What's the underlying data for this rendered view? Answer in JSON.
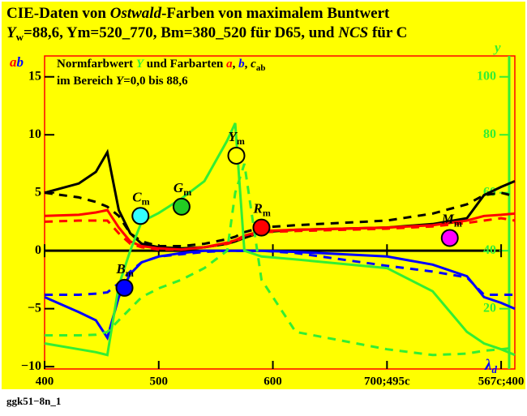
{
  "chart_data": {
    "type": "line",
    "title_line1": [
      "CIE-Daten von ",
      "Ostwald",
      "-Farben von maximalem Buntwert"
    ],
    "title_line2": [
      "Y",
      "w",
      "=88,6, Ym=520_770, Bm=380_520 für D65, und ",
      "NCS",
      " für C"
    ],
    "note_line1": [
      "Normfarbwert ",
      "Y",
      " und Farbarten ",
      "a",
      ", ",
      "b",
      ", ",
      "c",
      "ab"
    ],
    "note_line2": [
      "im Bereich ",
      "Y",
      "=0,0 bis 88,6"
    ],
    "y_label": [
      "a",
      "b"
    ],
    "y2_label": "y",
    "x_label": [
      "λ",
      "d"
    ],
    "footer": "ggk51−8n_1",
    "xlim": [
      400,
      812
    ],
    "xticks": [
      400,
      500,
      600,
      {
        "value": 700,
        "label": "700;495c"
      },
      {
        "value": 800,
        "label": "567c;400"
      }
    ],
    "ylim": [
      -10.2,
      16.8
    ],
    "yticks": [
      {
        "value": -10,
        "label": "−10"
      },
      {
        "value": -5,
        "label": "−5"
      },
      0,
      5,
      10,
      15
    ],
    "y2lim": [
      -0.8,
      107.2
    ],
    "y2ticks": [
      20,
      40,
      60,
      80,
      100
    ],
    "x": [
      400,
      430,
      445,
      455,
      465,
      475,
      485,
      500,
      520,
      540,
      560,
      567,
      575,
      590,
      620,
      700,
      740,
      770,
      785,
      800,
      812
    ],
    "series": [
      {
        "color": "#000000",
        "dashed": false,
        "values": [
          5,
          5.8,
          6.8,
          8.5,
          3.5,
          1.5,
          0.6,
          0.3,
          0.2,
          0.3,
          0.6,
          0.8,
          1.1,
          1.6,
          1.8,
          2,
          2.3,
          2.8,
          4.8,
          5.5,
          6
        ]
      },
      {
        "color": "#000000",
        "dashed": true,
        "values": [
          5,
          4.6,
          4.2,
          3.8,
          3,
          1.5,
          0.8,
          0.4,
          0.4,
          0.6,
          1,
          1.2,
          1.6,
          2,
          2.2,
          2.6,
          3.2,
          4,
          4.8,
          5,
          4.7
        ]
      },
      {
        "color": "#ff0000",
        "dashed": false,
        "values": [
          3,
          3.1,
          3.3,
          3.5,
          2,
          0.8,
          0.4,
          0.2,
          0.1,
          0.3,
          0.7,
          0.9,
          1.3,
          1.7,
          1.8,
          2,
          2.2,
          2.6,
          3,
          3.1,
          3.2
        ]
      },
      {
        "color": "#ff0000",
        "dashed": true,
        "values": [
          2.5,
          2.6,
          2.6,
          2.6,
          1.5,
          0.6,
          0.3,
          0.1,
          0.1,
          0.3,
          0.6,
          0.8,
          1.2,
          1.6,
          1.7,
          1.9,
          2.1,
          2.4,
          2.6,
          2.8,
          2.6
        ]
      },
      {
        "color": "#0000ff",
        "dashed": false,
        "values": [
          -4,
          -5.3,
          -6,
          -7.5,
          -4,
          -2,
          -1,
          -0.5,
          -0.2,
          0,
          0,
          0,
          0,
          0,
          -0.1,
          -0.5,
          -1.2,
          -2.2,
          -4,
          -4.5,
          -5
        ]
      },
      {
        "color": "#0000ff",
        "dashed": true,
        "values": [
          -3.8,
          -3.8,
          -3.7,
          -3.6,
          -2.8,
          -1.8,
          -1,
          -0.5,
          -0.3,
          -0.1,
          0,
          0,
          0,
          0,
          -0.2,
          -1.3,
          -1.8,
          -2.3,
          -3.8,
          -3.8,
          -3.8
        ]
      },
      {
        "color": "#33ee33",
        "dashed": false,
        "axis": "y2",
        "values": [
          8,
          6,
          5,
          4,
          28,
          40,
          50,
          53,
          58,
          64,
          78,
          84,
          40,
          38,
          37,
          34,
          26,
          12,
          8,
          6,
          4
        ]
      },
      {
        "color": "#33ee33",
        "dashed": true,
        "axis": "y2",
        "values": [
          10.8,
          10.8,
          11,
          12,
          16,
          20,
          24,
          27,
          30,
          34,
          40,
          60,
          70,
          30,
          12,
          6,
          4,
          4.5,
          5.5,
          6,
          6.5
        ]
      }
    ],
    "points": [
      {
        "label": "C",
        "sub": "m",
        "x": 484,
        "y": 3,
        "color": "#33ffff"
      },
      {
        "label": "G",
        "sub": "m",
        "x": 520,
        "y": 3.8,
        "color": "#22cc22"
      },
      {
        "label": "Y",
        "sub": "m",
        "x": 568,
        "y": 8.2,
        "color": "#ffff00"
      },
      {
        "label": "R",
        "sub": "m",
        "x": 590,
        "y": 2,
        "color": "#ff0000"
      },
      {
        "label": "M",
        "sub": "m",
        "x": 755,
        "y": 1.1,
        "color": "#ff00ff"
      },
      {
        "label": "B",
        "sub": "m",
        "x": 470,
        "y": -3.2,
        "color": "#0000ff"
      }
    ]
  }
}
